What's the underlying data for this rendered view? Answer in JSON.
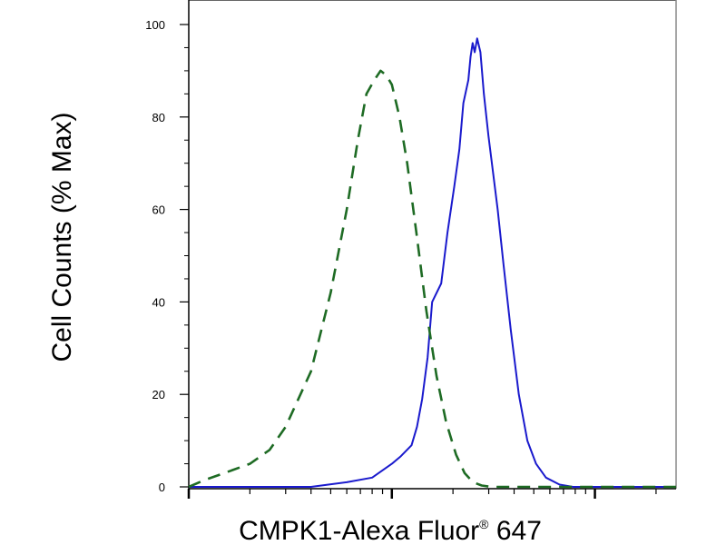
{
  "chart_data": {
    "type": "line",
    "title": "",
    "xlabel": "CMPK1-Alexa Fluor",
    "xlabel_mark": "®",
    "xlabel_suffix": " 647",
    "ylabel": "Cell Counts (% Max)",
    "ylim": [
      0,
      100
    ],
    "x_scale": "log",
    "xlim": [
      1,
      251
    ],
    "yticks": [
      "0",
      "20",
      "40",
      "60",
      "80",
      "100"
    ],
    "grid": false,
    "legend": "none",
    "series": [
      {
        "color": "#1a1acd",
        "style": "solid",
        "x": [
          1,
          4,
          6,
          8,
          10,
          11,
          12.5,
          13.3,
          14.1,
          15,
          15.8,
          17.5,
          18.8,
          20.3,
          21.5,
          22.5,
          23.8,
          24.4,
          25,
          25.6,
          26.3,
          27.3,
          28.4,
          29.9,
          31.5,
          33.2,
          35.5,
          38.5,
          42.2,
          46.5,
          51.3,
          57.4,
          67,
          78,
          251
        ],
        "values": [
          0,
          0,
          1,
          2,
          5,
          6.5,
          9,
          13,
          19,
          28,
          40,
          44,
          55,
          65,
          73,
          83,
          88,
          93,
          96,
          94,
          97,
          94,
          85,
          76,
          68,
          60,
          48,
          34,
          20,
          10,
          5,
          2,
          0.5,
          0,
          0
        ]
      },
      {
        "color": "#1e6b24",
        "style": "dashed",
        "x": [
          1,
          1.2,
          1.5,
          2,
          2.5,
          3,
          4,
          5,
          6,
          6.8,
          7.5,
          8.2,
          8.8,
          9.4,
          10,
          10.9,
          11.9,
          13.2,
          14.8,
          16.6,
          18.5,
          20.7,
          22.8,
          25.1,
          27.7,
          30.9,
          251
        ],
        "values": [
          0,
          1.5,
          3,
          5,
          8,
          13,
          25,
          42,
          60,
          75,
          85,
          88,
          90,
          89,
          87,
          80,
          70,
          55,
          38,
          24,
          14,
          7,
          3,
          1,
          0.3,
          0,
          0
        ]
      }
    ]
  }
}
